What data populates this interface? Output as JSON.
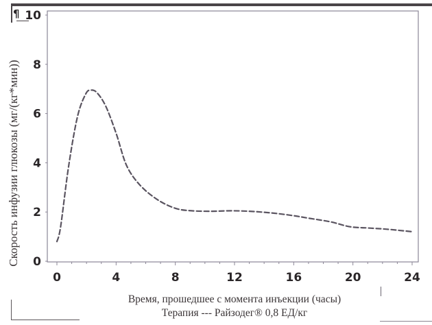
{
  "page_marker": "¶",
  "chart_data": {
    "type": "line",
    "title": "",
    "xlabel": "Время, прошедшее с момента инъекции (часы)",
    "ylabel": "Скорость инфузии глюкозы (мг/(кг*мин))",
    "caption": "Терапия --- Райзодег® 0,8 ЕД/кг",
    "xlim": [
      0,
      24
    ],
    "ylim": [
      0,
      10
    ],
    "x_ticks": [
      0,
      4,
      8,
      12,
      16,
      20,
      24
    ],
    "y_ticks": [
      0,
      2,
      4,
      6,
      8,
      10
    ],
    "grid": false,
    "legend": null,
    "series": [
      {
        "name": "Райзодег® 0,8 ЕД/кг",
        "style": "dashed",
        "color": "#5a5460",
        "x": [
          0,
          0.25,
          0.8,
          1.4,
          1.95,
          2.3,
          2.7,
          3.3,
          4.0,
          4.7,
          5.6,
          6.8,
          8.0,
          9.1,
          10.5,
          11.9,
          13.3,
          14.7,
          16.0,
          17.0,
          18.5,
          19.8,
          21.0,
          22.3,
          24.0
        ],
        "values": [
          0.8,
          1.4,
          3.9,
          5.9,
          6.8,
          6.95,
          6.85,
          6.3,
          5.2,
          3.9,
          3.1,
          2.5,
          2.15,
          2.05,
          2.03,
          2.05,
          2.02,
          1.95,
          1.85,
          1.75,
          1.6,
          1.4,
          1.35,
          1.3,
          1.2
        ]
      }
    ]
  }
}
